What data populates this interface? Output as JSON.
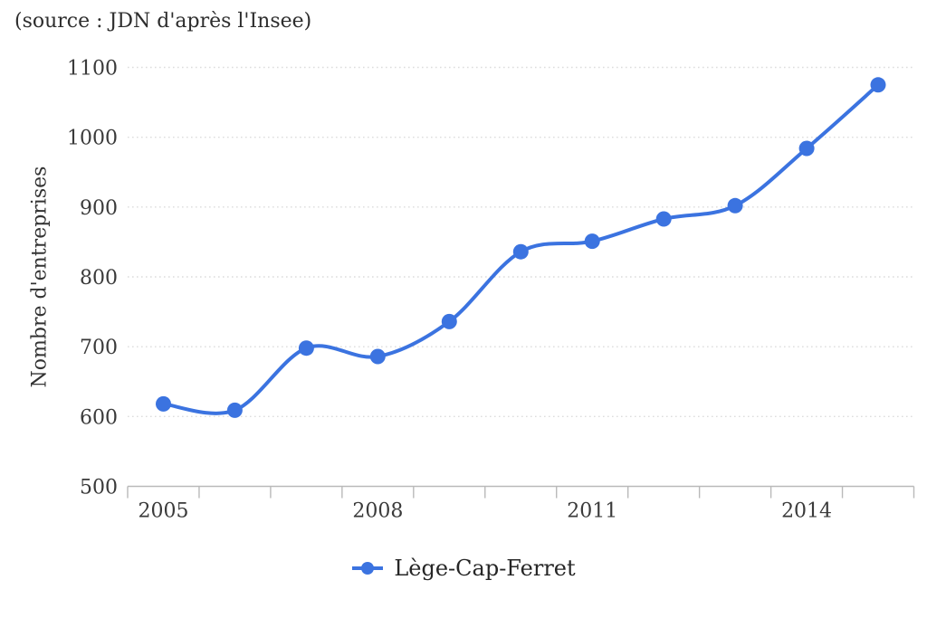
{
  "source_note": "(source : JDN d'après l'Insee)",
  "colors": {
    "series_blue": "#3b73e0",
    "grid": "#dcdcdc",
    "axis": "#b9b9b9",
    "tick_label": "#3a3a3a"
  },
  "chart_data": {
    "type": "line",
    "title": "",
    "xlabel": "",
    "ylabel": "Nombre d'entreprises",
    "x": [
      2005,
      2006,
      2007,
      2008,
      2009,
      2010,
      2011,
      2012,
      2013,
      2014,
      2015
    ],
    "series": [
      {
        "name": "Lège-Cap-Ferret",
        "color": "#3b73e0",
        "values": [
          618,
          609,
          698,
          686,
          736,
          836,
          851,
          883,
          902,
          984,
          1075
        ]
      }
    ],
    "ylim": [
      500,
      1100
    ],
    "yticks": [
      500,
      600,
      700,
      800,
      900,
      1000,
      1100
    ],
    "x_axis_labeled_years": [
      2005,
      2008,
      2011,
      2014
    ],
    "grid": "horizontal-dotted",
    "legend_position": "bottom",
    "marker": "circle",
    "smooth": true
  }
}
